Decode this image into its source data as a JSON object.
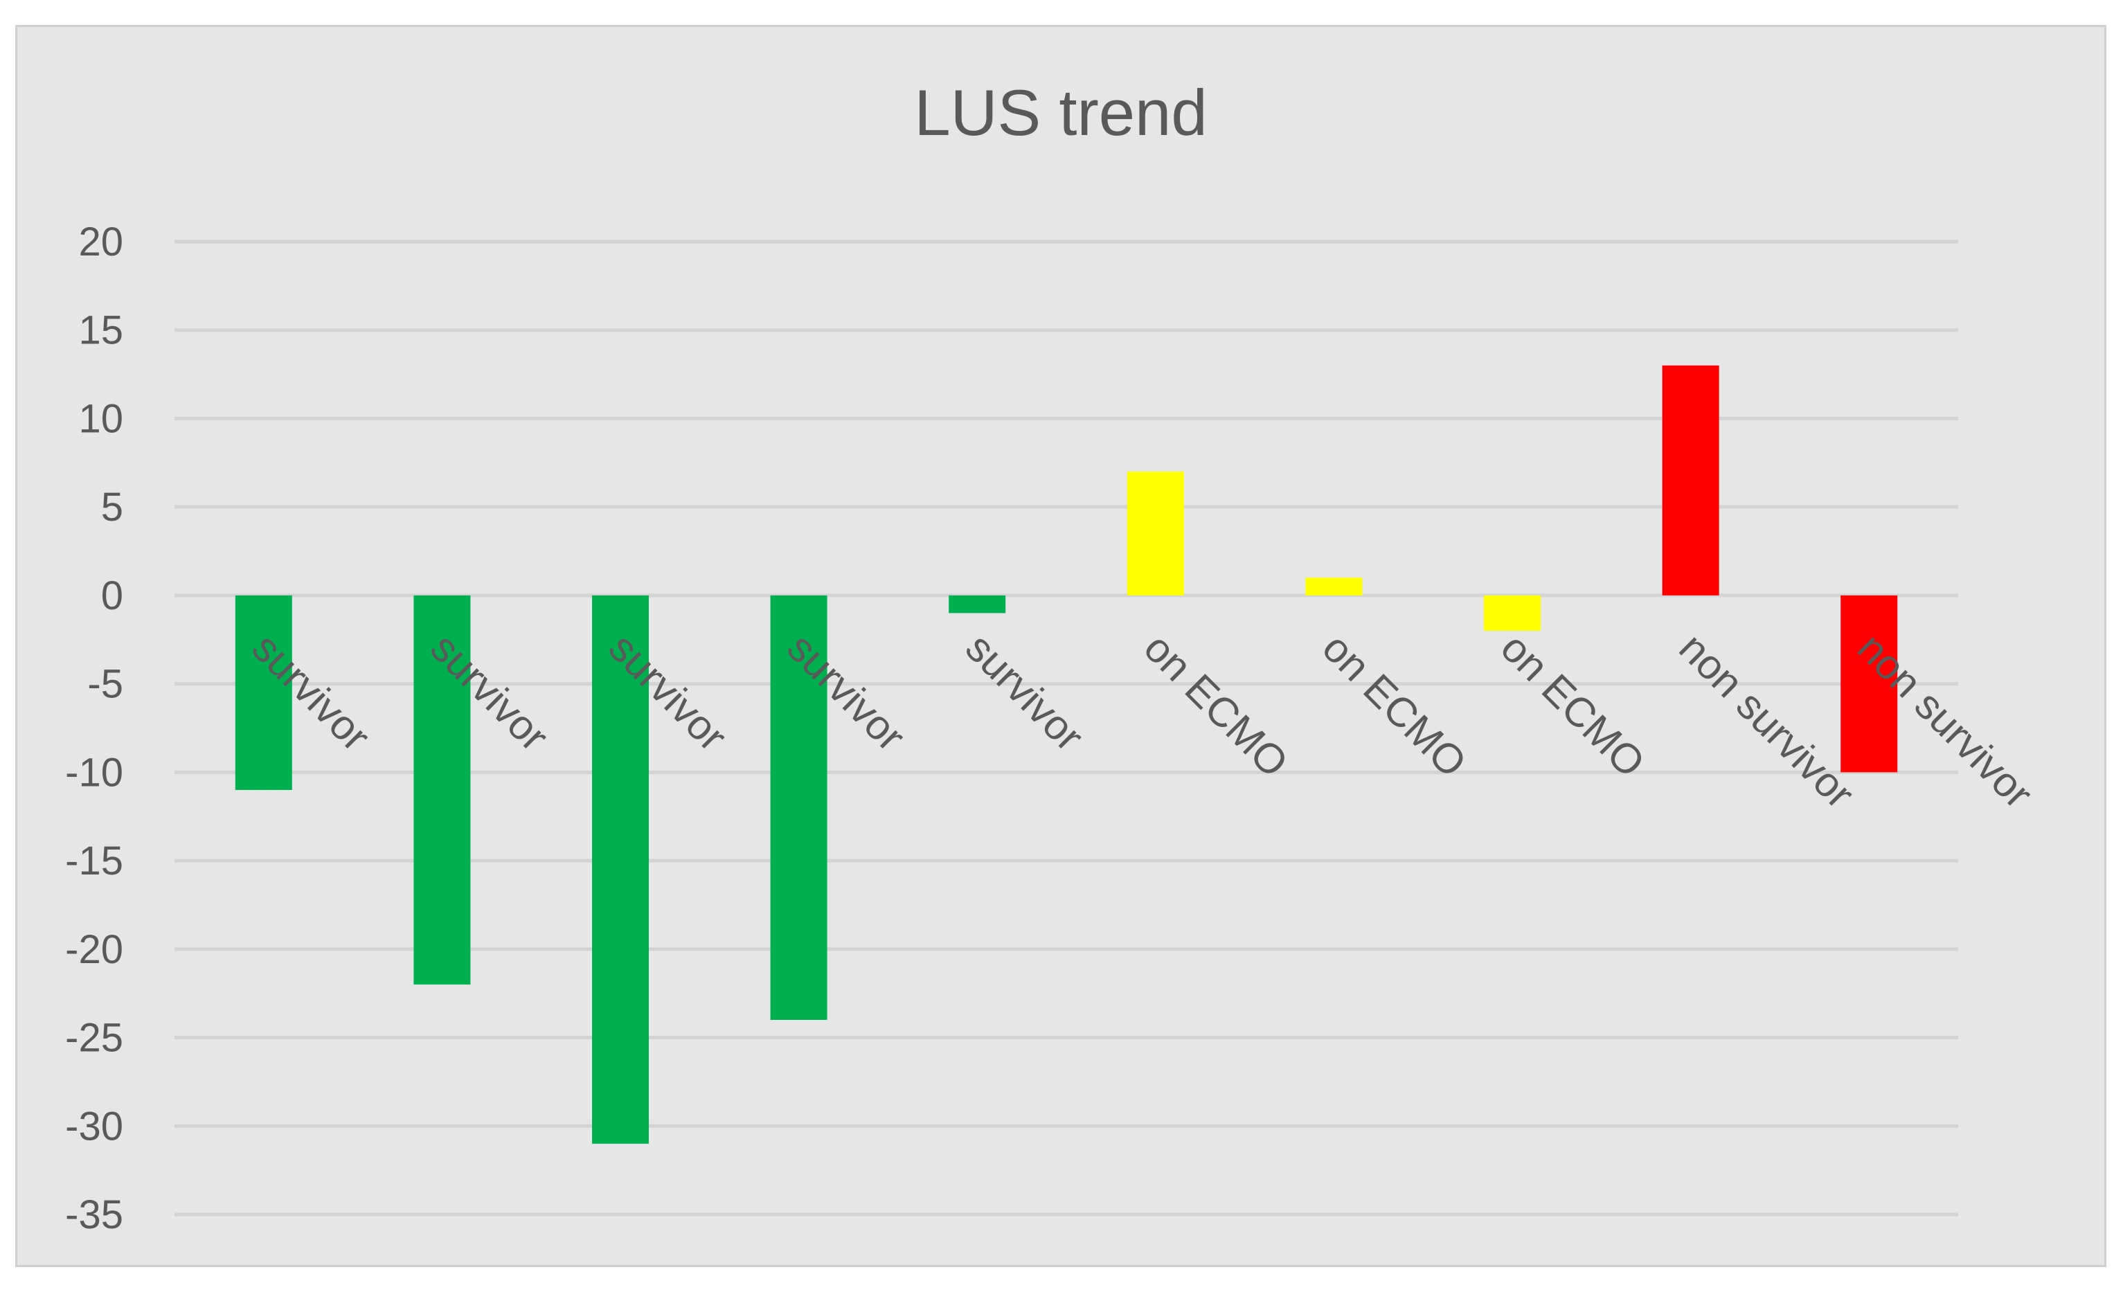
{
  "chart_data": {
    "type": "bar",
    "title": "LUS trend",
    "xlabel": "",
    "ylabel": "",
    "categories": [
      "survivor",
      "survivor",
      "survivor",
      "survivor",
      "survivor",
      "on ECMO",
      "on ECMO",
      "on ECMO",
      "non survivor",
      "non survivor"
    ],
    "values": [
      -11,
      -22,
      -31,
      -24,
      -1,
      7,
      1,
      -2,
      13,
      -10
    ],
    "colors": [
      "#00b050",
      "#00b050",
      "#00b050",
      "#00b050",
      "#00b050",
      "#ffff00",
      "#ffff00",
      "#ffff00",
      "#ff0000",
      "#ff0000"
    ],
    "ylim": [
      -35,
      20
    ],
    "yticks": [
      20,
      15,
      10,
      5,
      0,
      -5,
      -10,
      -15,
      -20,
      -25,
      -30,
      -35
    ],
    "grid": true,
    "legend": "none",
    "colors_meaning": {
      "survivor": "#00b050",
      "on ECMO": "#ffff00",
      "non survivor": "#ff0000"
    }
  }
}
